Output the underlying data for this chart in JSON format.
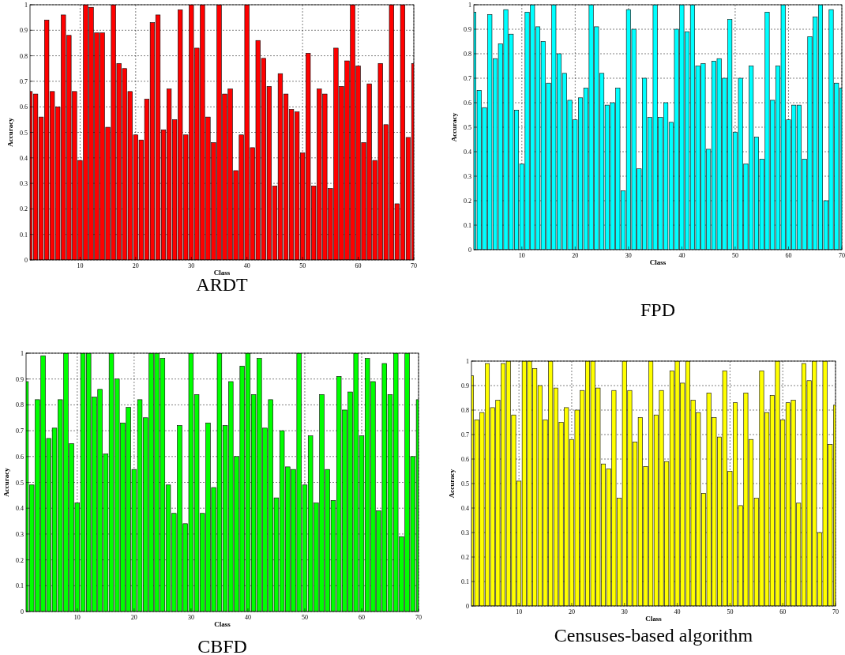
{
  "chart_data": [
    {
      "type": "bar",
      "title": "ARDT",
      "xlabel": "Class",
      "ylabel": "Accuracy",
      "color": "#ff0000",
      "xlim": [
        1,
        70
      ],
      "xticks": [
        10,
        20,
        30,
        40,
        50,
        60,
        70
      ],
      "ylim": [
        0,
        1
      ],
      "yticks": [
        0,
        0.1,
        0.2,
        0.3,
        0.4,
        0.5,
        0.6,
        0.7,
        0.8,
        0.9,
        1
      ],
      "grid": true,
      "x": [
        1,
        2,
        3,
        4,
        5,
        6,
        7,
        8,
        9,
        10,
        11,
        12,
        13,
        14,
        15,
        16,
        17,
        18,
        19,
        20,
        21,
        22,
        23,
        24,
        25,
        26,
        27,
        28,
        29,
        30,
        31,
        32,
        33,
        34,
        35,
        36,
        37,
        38,
        39,
        40,
        41,
        42,
        43,
        44,
        45,
        46,
        47,
        48,
        49,
        50,
        51,
        52,
        53,
        54,
        55,
        56,
        57,
        58,
        59,
        60,
        61,
        62,
        63,
        64,
        65,
        66,
        67,
        68,
        69,
        70
      ],
      "values": [
        0.66,
        0.65,
        0.56,
        0.94,
        0.66,
        0.6,
        0.96,
        0.88,
        0.66,
        0.39,
        1,
        0.99,
        0.89,
        0.89,
        0.52,
        1,
        0.77,
        0.75,
        0.66,
        0.49,
        0.47,
        0.63,
        0.93,
        0.96,
        0.51,
        0.67,
        0.55,
        0.98,
        0.49,
        1,
        0.83,
        1,
        0.56,
        0.46,
        1,
        0.65,
        0.67,
        0.35,
        0.49,
        1,
        0.44,
        0.86,
        0.79,
        0.68,
        0.29,
        0.73,
        0.65,
        0.59,
        0.58,
        0.42,
        0.81,
        0.29,
        0.67,
        0.65,
        0.28,
        0.83,
        0.68,
        0.78,
        1,
        0.76,
        0.46,
        0.69,
        0.39,
        0.77,
        0.53,
        1,
        0.22,
        1,
        0.48,
        0.77
      ]
    },
    {
      "type": "bar",
      "title": "FPD",
      "xlabel": "Class",
      "ylabel": "Accuracy",
      "color": "#00ffff",
      "xlim": [
        1,
        70
      ],
      "xticks": [
        10,
        20,
        30,
        40,
        50,
        60,
        70
      ],
      "ylim": [
        0,
        1
      ],
      "yticks": [
        0,
        0.1,
        0.2,
        0.3,
        0.4,
        0.5,
        0.6,
        0.7,
        0.8,
        0.9,
        1
      ],
      "grid": true,
      "x": [
        1,
        2,
        3,
        4,
        5,
        6,
        7,
        8,
        9,
        10,
        11,
        12,
        13,
        14,
        15,
        16,
        17,
        18,
        19,
        20,
        21,
        22,
        23,
        24,
        25,
        26,
        27,
        28,
        29,
        30,
        31,
        32,
        33,
        34,
        35,
        36,
        37,
        38,
        39,
        40,
        41,
        42,
        43,
        44,
        45,
        46,
        47,
        48,
        49,
        50,
        51,
        52,
        53,
        54,
        55,
        56,
        57,
        58,
        59,
        60,
        61,
        62,
        63,
        64,
        65,
        66,
        67,
        68,
        69,
        70
      ],
      "values": [
        0.97,
        0.65,
        0.58,
        0.96,
        0.78,
        0.84,
        0.98,
        0.88,
        0.57,
        0.35,
        0.97,
        1,
        0.91,
        0.85,
        0.68,
        1,
        0.8,
        0.72,
        0.61,
        0.53,
        0.62,
        0.66,
        1,
        0.91,
        0.72,
        0.59,
        0.6,
        0.66,
        0.24,
        0.98,
        0.9,
        0.33,
        0.7,
        0.54,
        1,
        0.54,
        0.6,
        0.52,
        0.9,
        1,
        0.89,
        1,
        0.75,
        0.76,
        0.41,
        0.77,
        0.78,
        0.7,
        0.94,
        0.48,
        0.7,
        0.35,
        0.75,
        0.46,
        0.37,
        0.97,
        0.61,
        0.75,
        1,
        0.53,
        0.59,
        0.59,
        0.37,
        0.87,
        0.95,
        1,
        0.2,
        0.98,
        0.68,
        0.66
      ]
    },
    {
      "type": "bar",
      "title": "CBFD",
      "xlabel": "Class",
      "ylabel": "Accuracy",
      "color": "#00ff00",
      "xlim": [
        1,
        70
      ],
      "xticks": [
        10,
        20,
        30,
        40,
        50,
        60,
        70
      ],
      "ylim": [
        0,
        1
      ],
      "yticks": [
        0,
        0.1,
        0.2,
        0.3,
        0.4,
        0.5,
        0.6,
        0.7,
        0.8,
        0.9,
        1
      ],
      "grid": true,
      "x": [
        1,
        2,
        3,
        4,
        5,
        6,
        7,
        8,
        9,
        10,
        11,
        12,
        13,
        14,
        15,
        16,
        17,
        18,
        19,
        20,
        21,
        22,
        23,
        24,
        25,
        26,
        27,
        28,
        29,
        30,
        31,
        32,
        33,
        34,
        35,
        36,
        37,
        38,
        39,
        40,
        41,
        42,
        43,
        44,
        45,
        46,
        47,
        48,
        49,
        50,
        51,
        52,
        53,
        54,
        55,
        56,
        57,
        58,
        59,
        60,
        61,
        62,
        63,
        64,
        65,
        66,
        67,
        68,
        69,
        70
      ],
      "values": [
        0.89,
        0.49,
        0.82,
        0.99,
        0.67,
        0.71,
        0.82,
        1,
        0.65,
        0.42,
        1,
        1,
        0.83,
        0.86,
        0.61,
        1,
        0.9,
        0.73,
        0.79,
        0.55,
        0.82,
        0.75,
        1,
        1,
        0.98,
        0.49,
        0.38,
        0.72,
        0.34,
        1,
        0.84,
        0.38,
        0.73,
        0.48,
        1,
        0.72,
        0.89,
        0.6,
        0.95,
        1,
        0.84,
        0.98,
        0.71,
        0.82,
        0.44,
        0.7,
        0.56,
        0.55,
        1,
        0.49,
        0.68,
        0.42,
        0.84,
        0.55,
        0.43,
        0.91,
        0.78,
        0.85,
        1,
        0.68,
        0.98,
        0.89,
        0.39,
        0.96,
        0.84,
        1,
        0.29,
        1,
        0.6,
        0.82
      ]
    },
    {
      "type": "bar",
      "title": "Censuses-based algorithm",
      "xlabel": "Class",
      "ylabel": "Accuracy",
      "color": "#ffff00",
      "xlim": [
        1,
        70
      ],
      "xticks": [
        10,
        20,
        30,
        40,
        50,
        60,
        70
      ],
      "ylim": [
        0,
        1
      ],
      "yticks": [
        0,
        0.1,
        0.2,
        0.3,
        0.4,
        0.5,
        0.6,
        0.7,
        0.8,
        0.9,
        1
      ],
      "grid": true,
      "x": [
        1,
        2,
        3,
        4,
        5,
        6,
        7,
        8,
        9,
        10,
        11,
        12,
        13,
        14,
        15,
        16,
        17,
        18,
        19,
        20,
        21,
        22,
        23,
        24,
        25,
        26,
        27,
        28,
        29,
        30,
        31,
        32,
        33,
        34,
        35,
        36,
        37,
        38,
        39,
        40,
        41,
        42,
        43,
        44,
        45,
        46,
        47,
        48,
        49,
        50,
        51,
        52,
        53,
        54,
        55,
        56,
        57,
        58,
        59,
        60,
        61,
        62,
        63,
        64,
        65,
        66,
        67,
        68,
        69,
        70
      ],
      "values": [
        0.94,
        0.76,
        0.79,
        0.99,
        0.81,
        0.84,
        0.99,
        1,
        0.78,
        0.51,
        1,
        1,
        0.97,
        0.9,
        0.76,
        1,
        0.89,
        0.75,
        0.81,
        0.68,
        0.8,
        0.88,
        1,
        1,
        0.89,
        0.58,
        0.56,
        0.88,
        0.44,
        1,
        0.88,
        0.67,
        0.77,
        0.57,
        1,
        0.78,
        0.88,
        0.59,
        0.96,
        1,
        0.91,
        1,
        0.84,
        0.79,
        0.46,
        0.87,
        0.77,
        0.69,
        0.96,
        0.55,
        0.83,
        0.41,
        0.87,
        0.68,
        0.44,
        0.96,
        0.79,
        0.86,
        1,
        0.76,
        0.83,
        0.84,
        0.42,
        0.99,
        0.92,
        1,
        0.3,
        1,
        0.66,
        0.82
      ]
    }
  ]
}
